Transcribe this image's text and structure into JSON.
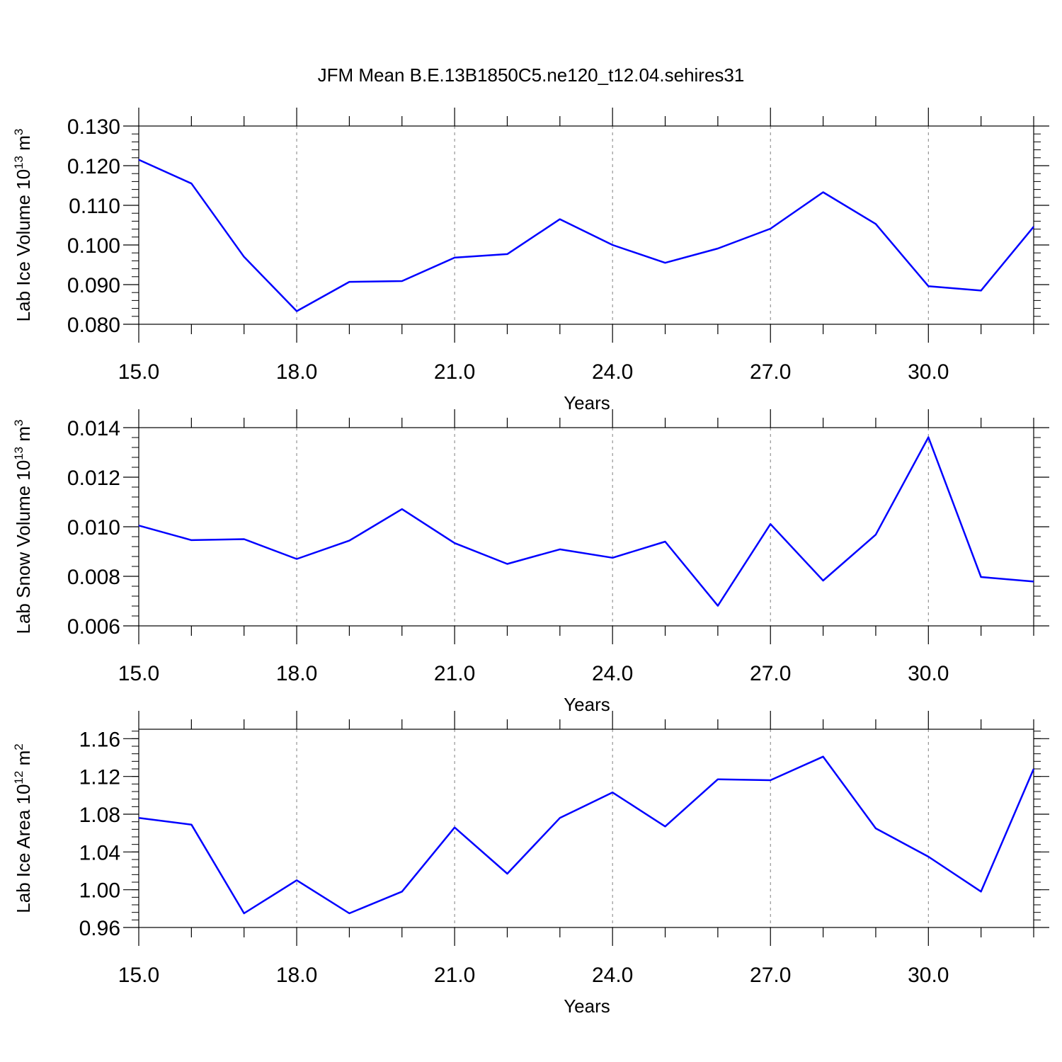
{
  "title": "JFM Mean B.E.13B1850C5.ne120_t12.04.sehires31",
  "colors": {
    "line": "#0000ff",
    "axis": "#000000",
    "grid": "#808080",
    "background": "#ffffff"
  },
  "chart_data": [
    {
      "type": "line",
      "xlabel": "Years",
      "ylabel_parts": [
        "Lab Ice Volume 10",
        "13",
        " m",
        "3"
      ],
      "xlim": [
        15,
        32
      ],
      "ylim": [
        0.08,
        0.13
      ],
      "x_ticks": [
        15,
        18,
        21,
        24,
        27,
        30
      ],
      "x_tick_labels": [
        "15.0",
        "18.0",
        "21.0",
        "24.0",
        "27.0",
        "30.0"
      ],
      "y_ticks": [
        0.08,
        0.09,
        0.1,
        0.11,
        0.12,
        0.13
      ],
      "y_tick_labels": [
        "0.080",
        "0.090",
        "0.100",
        "0.110",
        "0.120",
        "0.130"
      ],
      "y_minor_step": 0.002,
      "grid": "vertical-dashed",
      "x": [
        15,
        16,
        17,
        18,
        19,
        20,
        21,
        22,
        23,
        24,
        25,
        26,
        27,
        28,
        29,
        30,
        31,
        32
      ],
      "values": [
        0.1215,
        0.1155,
        0.097,
        0.0833,
        0.0907,
        0.0909,
        0.0968,
        0.0977,
        0.1065,
        0.1,
        0.0955,
        0.0991,
        0.1041,
        0.1133,
        0.1053,
        0.0896,
        0.0885,
        0.1046
      ]
    },
    {
      "type": "line",
      "xlabel": "Years",
      "ylabel_parts": [
        "Lab Snow Volume 10",
        "13",
        " m",
        "3"
      ],
      "xlim": [
        15,
        32
      ],
      "ylim": [
        0.006,
        0.014
      ],
      "x_ticks": [
        15,
        18,
        21,
        24,
        27,
        30
      ],
      "x_tick_labels": [
        "15.0",
        "18.0",
        "21.0",
        "24.0",
        "27.0",
        "30.0"
      ],
      "y_ticks": [
        0.006,
        0.008,
        0.01,
        0.012,
        0.014
      ],
      "y_tick_labels": [
        "0.006",
        "0.008",
        "0.010",
        "0.012",
        "0.014"
      ],
      "y_minor_step": 0.0004,
      "grid": "vertical-dashed",
      "x": [
        15,
        16,
        17,
        18,
        19,
        20,
        21,
        22,
        23,
        24,
        25,
        26,
        27,
        28,
        29,
        30,
        31,
        32
      ],
      "values": [
        0.01005,
        0.00946,
        0.0095,
        0.0087,
        0.00944,
        0.01071,
        0.00934,
        0.0085,
        0.00909,
        0.00875,
        0.0094,
        0.00681,
        0.01011,
        0.00783,
        0.00968,
        0.01361,
        0.00797,
        0.00779
      ]
    },
    {
      "type": "line",
      "xlabel": "Years",
      "ylabel_parts": [
        "Lab Ice Area 10",
        "12",
        " m",
        "2"
      ],
      "xlim": [
        15,
        32
      ],
      "ylim": [
        0.96,
        1.17
      ],
      "x_ticks": [
        15,
        18,
        21,
        24,
        27,
        30
      ],
      "x_tick_labels": [
        "15.0",
        "18.0",
        "21.0",
        "24.0",
        "27.0",
        "30.0"
      ],
      "y_ticks": [
        0.96,
        1.0,
        1.04,
        1.08,
        1.12,
        1.16
      ],
      "y_tick_labels": [
        "0.96",
        "1.00",
        "1.04",
        "1.08",
        "1.12",
        "1.16"
      ],
      "y_minor_step": 0.008,
      "grid": "vertical-dashed",
      "x": [
        15,
        16,
        17,
        18,
        19,
        20,
        21,
        22,
        23,
        24,
        25,
        26,
        27,
        28,
        29,
        30,
        31,
        32
      ],
      "values": [
        1.076,
        1.069,
        0.975,
        1.01,
        0.975,
        0.998,
        1.066,
        1.017,
        1.076,
        1.103,
        1.067,
        1.117,
        1.116,
        1.141,
        1.065,
        1.035,
        0.998,
        1.128
      ]
    }
  ]
}
